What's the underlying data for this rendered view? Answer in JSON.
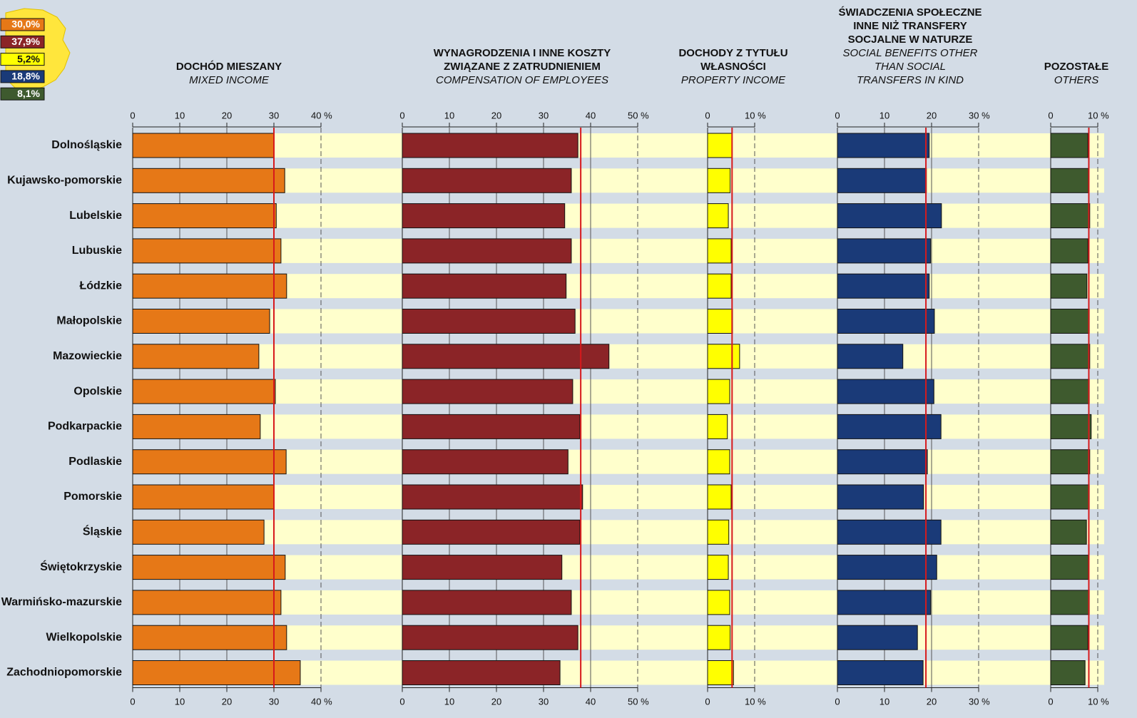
{
  "chart_data": [
    {
      "type": "bar",
      "orientation": "horizontal",
      "categories": [
        "Dolnośląskie",
        "Kujawsko-pomorskie",
        "Lubelskie",
        "Lubuskie",
        "Łódzkie",
        "Małopolskie",
        "Mazowieckie",
        "Opolskie",
        "Podkarpackie",
        "Podlaskie",
        "Pomorskie",
        "Śląskie",
        "Świętokrzyskie",
        "Warmińsko-mazurskie",
        "Wielkopolskie",
        "Zachodniopomorskie"
      ],
      "title": [
        "DOCHÓD MIESZANY"
      ],
      "subtitle": [
        "MIXED INCOME"
      ],
      "values": [
        30.0,
        32.3,
        30.5,
        31.5,
        32.7,
        29.1,
        26.8,
        30.3,
        27.1,
        32.6,
        30.0,
        27.9,
        32.4,
        31.5,
        32.7,
        35.6
      ],
      "color": "#e67817",
      "xlim": [
        0,
        40
      ],
      "xticks": [
        0,
        10,
        20,
        30,
        {
          "value": 40,
          "label": "40 %"
        }
      ],
      "reference": {
        "value": 30.0,
        "label": "30,0%"
      },
      "reference_color": "#d7191c"
    },
    {
      "type": "bar",
      "orientation": "horizontal",
      "title": [
        "WYNAGRODZENIA I INNE KOSZTY",
        "ZWIĄZANE Z ZATRUDNIENIEM"
      ],
      "subtitle": [
        "COMPENSATION OF EMPLOYEES"
      ],
      "values": [
        37.3,
        35.9,
        34.5,
        35.9,
        34.8,
        36.7,
        43.9,
        36.2,
        37.7,
        35.2,
        38.3,
        37.7,
        33.9,
        35.9,
        37.3,
        33.5
      ],
      "color": "#8b2427",
      "xlim": [
        0,
        50
      ],
      "xticks": [
        0,
        10,
        20,
        30,
        40,
        {
          "value": 50,
          "label": "50 %"
        }
      ],
      "reference": {
        "value": 37.9,
        "label": "37,9%"
      },
      "reference_color": "#d7191c"
    },
    {
      "type": "bar",
      "orientation": "horizontal",
      "title": [
        "DOCHODY Z TYTUŁU",
        "WŁASNOŚCI"
      ],
      "subtitle": [
        "PROPERTY INCOME"
      ],
      "values": [
        5.2,
        4.8,
        4.4,
        5.0,
        5.0,
        5.3,
        6.8,
        4.7,
        4.2,
        4.7,
        5.0,
        4.5,
        4.4,
        4.7,
        4.8,
        5.5
      ],
      "color": "#ffff00",
      "xlim": [
        0,
        10
      ],
      "xticks": [
        0,
        {
          "value": 10,
          "label": "10 %"
        }
      ],
      "reference": {
        "value": 5.2,
        "label": "5,2%"
      },
      "reference_color": "#d7191c"
    },
    {
      "type": "bar",
      "orientation": "horizontal",
      "title": [
        "ŚWIADCZENIA SPOŁECZNE",
        "INNE NIŻ TRANSFERY",
        "SOCJALNE W NATURZE"
      ],
      "subtitle": [
        "SOCIAL BENEFITS OTHER",
        "THAN SOCIAL",
        "TRANSFERS IN KIND"
      ],
      "values": [
        19.5,
        18.9,
        22.1,
        19.8,
        19.5,
        20.6,
        13.9,
        20.5,
        22.0,
        19.1,
        18.3,
        22.0,
        21.1,
        19.8,
        17.0,
        18.2
      ],
      "color": "#1a3a78",
      "xlim": [
        0,
        30
      ],
      "xticks": [
        0,
        10,
        20,
        {
          "value": 30,
          "label": "30 %"
        }
      ],
      "reference": {
        "value": 18.8,
        "label": "18,8%"
      },
      "reference_color": "#d7191c"
    },
    {
      "type": "bar",
      "orientation": "horizontal",
      "title": [
        "POZOSTAŁE"
      ],
      "subtitle": [
        "OTHERS"
      ],
      "values": [
        7.9,
        8.0,
        8.3,
        7.9,
        7.7,
        8.2,
        8.3,
        8.2,
        8.6,
        8.3,
        8.2,
        7.6,
        8.0,
        8.2,
        7.9,
        7.3
      ],
      "color": "#3e5a2e",
      "xlim": [
        0,
        10
      ],
      "xticks": [
        0,
        {
          "value": 10,
          "label": "10 %"
        }
      ],
      "reference": {
        "value": 8.1,
        "label": "8,1%"
      },
      "reference_color": "#d7191c"
    }
  ]
}
